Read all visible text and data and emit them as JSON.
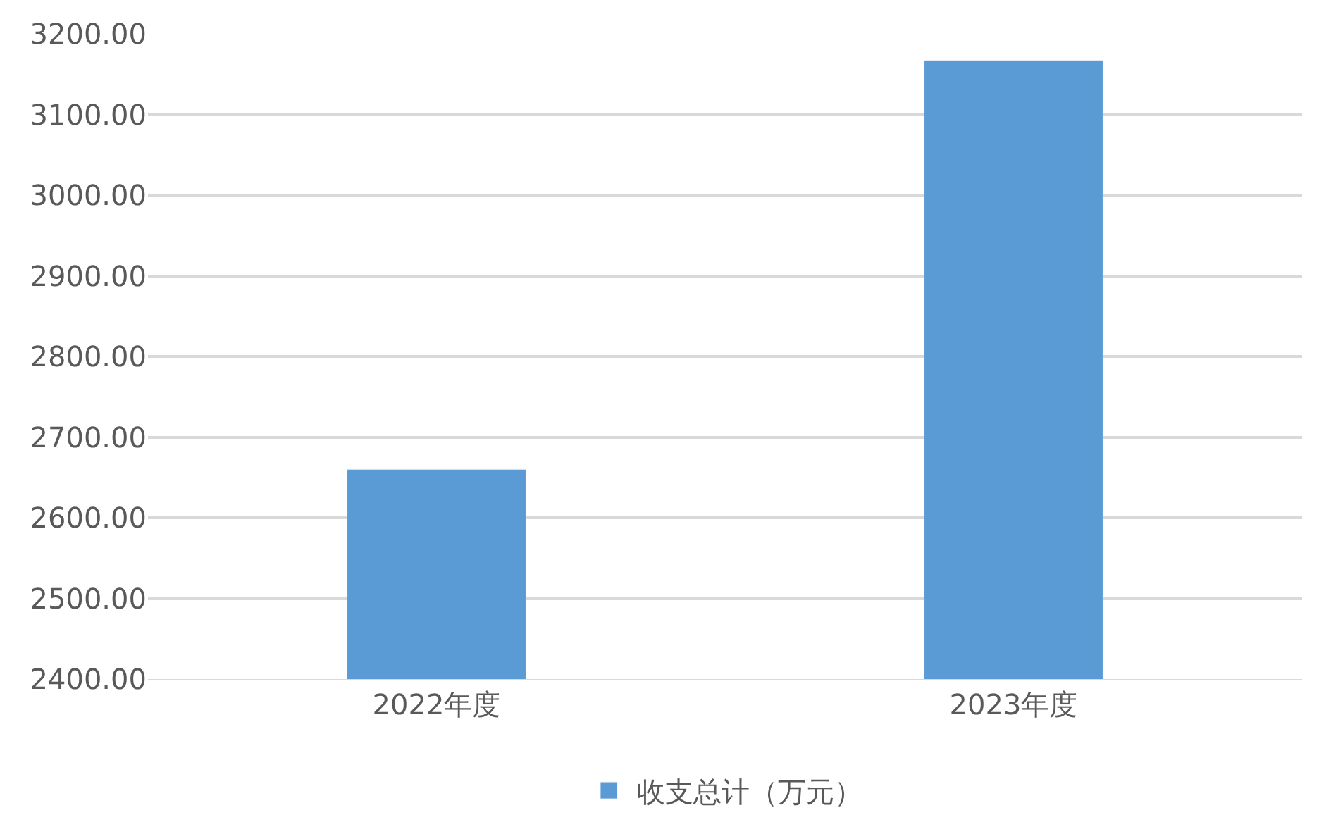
{
  "chart_data": {
    "type": "bar",
    "categories": [
      "2022年度",
      "2023年度"
    ],
    "series": [
      {
        "name": "收支总计（万元）",
        "color": "#5b9bd5",
        "values": [
          2660,
          3167
        ]
      }
    ],
    "ylim": [
      2400,
      3200
    ],
    "yticks": [
      {
        "value": 2400,
        "label": "2400.00"
      },
      {
        "value": 2500,
        "label": "2500.00"
      },
      {
        "value": 2600,
        "label": "2600.00"
      },
      {
        "value": 2700,
        "label": "2700.00"
      },
      {
        "value": 2800,
        "label": "2800.00"
      },
      {
        "value": 2900,
        "label": "2900.00"
      },
      {
        "value": 3000,
        "label": "3000.00"
      },
      {
        "value": 3100,
        "label": "3100.00"
      },
      {
        "value": 3200,
        "label": "3200.00"
      }
    ],
    "grid": "y",
    "legend": "bottom"
  }
}
